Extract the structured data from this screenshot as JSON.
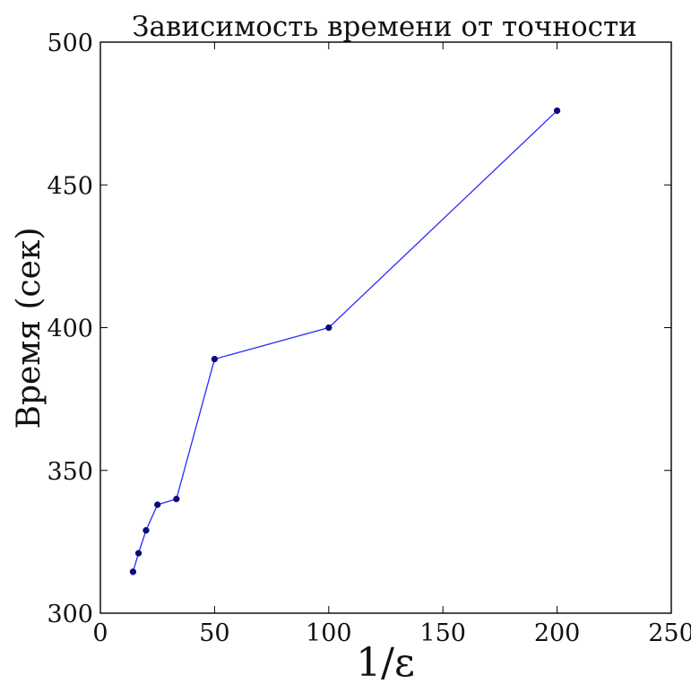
{
  "chart_data": {
    "type": "line",
    "title": "Зависимость времени от точности",
    "xlabel": "1/ε",
    "ylabel": "Время (сек)",
    "xlim": [
      0,
      250
    ],
    "ylim": [
      300,
      500
    ],
    "xticks": [
      0,
      50,
      100,
      150,
      200,
      250
    ],
    "yticks": [
      300,
      350,
      400,
      450,
      500
    ],
    "grid": false,
    "series": [
      {
        "color": "#2a2aff",
        "marker_color": "#0a0a7a",
        "x": [
          14.3,
          16.7,
          20,
          25,
          33.3,
          50,
          100,
          200
        ],
        "y": [
          314.5,
          321,
          329,
          338,
          340,
          389,
          400,
          476
        ]
      }
    ]
  }
}
